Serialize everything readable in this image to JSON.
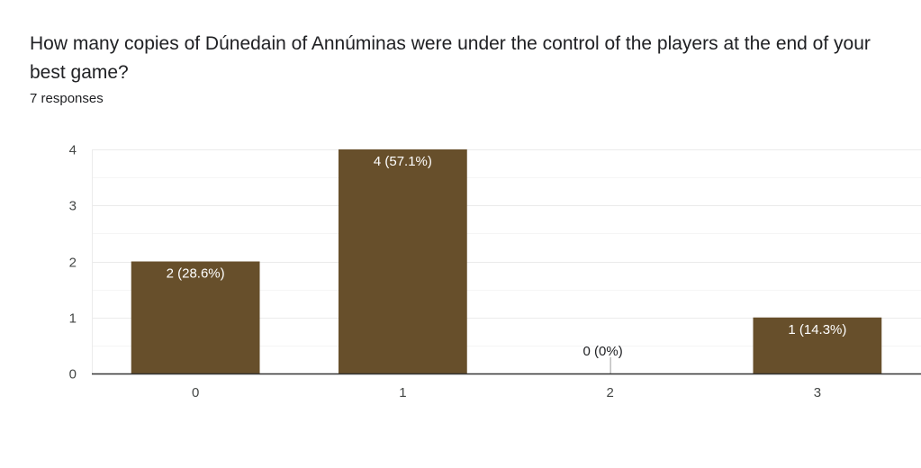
{
  "question": {
    "title": "How many copies of Dúnedain of Annúminas were under the control of the players at the end of your best game?",
    "response_count": "7 responses"
  },
  "colors": {
    "bar": "#674f2b",
    "label_inside": "#ffffff",
    "label_outside": "#202124",
    "gridline": "#ebebeb",
    "axis": "#333333"
  },
  "chart_data": {
    "type": "bar",
    "title": "How many copies of Dúnedain of Annúminas were under the control of the players at the end of your best game?",
    "categories": [
      "0",
      "1",
      "2",
      "3"
    ],
    "values": [
      2,
      4,
      0,
      1
    ],
    "data_labels": [
      "2 (28.6%)",
      "4 (57.1%)",
      "0 (0%)",
      "1 (14.3%)"
    ],
    "y_ticks": [
      0,
      1,
      2,
      3,
      4
    ],
    "ylim": [
      0,
      4
    ],
    "xlabel": "",
    "ylabel": "",
    "grid": true,
    "legend": "none"
  }
}
